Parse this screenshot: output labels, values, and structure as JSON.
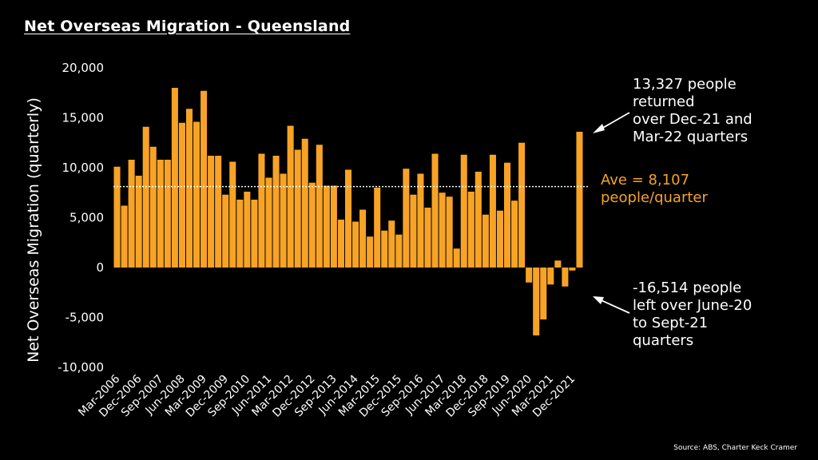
{
  "title": "Net Overseas Migration - Queensland",
  "source": "Source: ABS,  Charter Keck Cramer",
  "annotations": {
    "returned": "13,327 people\nreturned\nover Dec-21 and\nMar-22 quarters",
    "average": "Ave = 8,107\npeople/quarter",
    "left": "-16,514 people\nleft over June-20\nto Sept-21\nquarters"
  },
  "colors": {
    "bar": "#F7A326",
    "average_line": "#ffffff",
    "background": "#000000",
    "text": "#ffffff"
  },
  "chart_data": {
    "type": "bar",
    "ylabel": "Net Overseas Migration (quarterly)",
    "xlabel": "",
    "ylim": [
      -10000,
      20000
    ],
    "yticks": [
      20000,
      15000,
      10000,
      5000,
      0,
      -5000,
      -10000
    ],
    "ytick_labels": [
      "20,000",
      "15,000",
      "10,000",
      "5,000",
      "0",
      "-5,000",
      "-10,000"
    ],
    "xtick_labels": [
      "Mar-2006",
      "Dec-2006",
      "Sep-2007",
      "Jun-2008",
      "Mar-2009",
      "Dec-2009",
      "Sep-2010",
      "Jun-2011",
      "Mar-2012",
      "Dec-2012",
      "Sep-2013",
      "Jun-2014",
      "Mar-2015",
      "Dec-2015",
      "Sep-2016",
      "Jun-2017",
      "Mar-2018",
      "Dec-2018",
      "Sep-2019",
      "Jun-2020",
      "Mar-2021",
      "Dec-2021"
    ],
    "x_start": "Mar-2006",
    "x_end": "Mar-2022",
    "average": 8107,
    "values": [
      10100,
      6200,
      10800,
      9200,
      14100,
      12100,
      10800,
      10800,
      18000,
      14500,
      15900,
      14600,
      17700,
      11200,
      11200,
      7300,
      10600,
      6800,
      7600,
      6800,
      11400,
      9000,
      11200,
      9400,
      14200,
      11800,
      12900,
      8500,
      12300,
      8200,
      8200,
      4800,
      9800,
      4600,
      5800,
      3100,
      8000,
      3700,
      4700,
      3300,
      9900,
      7300,
      9400,
      6000,
      11400,
      7500,
      7100,
      1900,
      11300,
      7600,
      9600,
      5300,
      11300,
      5700,
      10500,
      6700,
      12500,
      -1500,
      -6800,
      -5200,
      -1700,
      700,
      -1900,
      -300,
      13600
    ]
  }
}
